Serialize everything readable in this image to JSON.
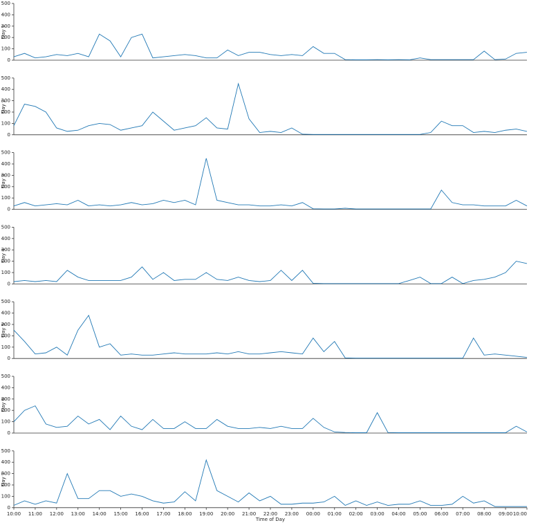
{
  "chart_data": [
    {
      "type": "line",
      "ylabel": "Day 1",
      "color": "#1f77b4",
      "xlim": [
        0,
        24
      ],
      "ylim": [
        0,
        500
      ],
      "yticks": [
        0,
        100,
        200,
        300,
        400,
        500
      ],
      "x": [
        0,
        0.5,
        1,
        1.5,
        2,
        2.5,
        3,
        3.5,
        4,
        4.5,
        5,
        5.5,
        6,
        6.5,
        7,
        7.5,
        8,
        8.5,
        9,
        9.5,
        10,
        10.5,
        11,
        11.5,
        12,
        12.5,
        13,
        13.5,
        14,
        14.5,
        15,
        15.5,
        16,
        16.5,
        17,
        17.5,
        18,
        18.5,
        19,
        19.5,
        20,
        20.5,
        21,
        21.5,
        22,
        22.5,
        23,
        23.5,
        24
      ],
      "values": [
        30,
        60,
        20,
        30,
        50,
        40,
        60,
        30,
        230,
        170,
        30,
        200,
        230,
        20,
        30,
        40,
        50,
        40,
        20,
        20,
        90,
        40,
        70,
        70,
        50,
        40,
        50,
        40,
        120,
        60,
        60,
        5,
        3,
        3,
        5,
        3,
        5,
        3,
        20,
        5,
        5,
        5,
        5,
        5,
        80,
        5,
        10,
        60,
        70
      ]
    },
    {
      "type": "line",
      "ylabel": "Day 2",
      "color": "#1f77b4",
      "xlim": [
        0,
        24
      ],
      "ylim": [
        0,
        500
      ],
      "yticks": [
        0,
        100,
        200,
        300,
        400,
        500
      ],
      "x": [
        0,
        0.5,
        1,
        1.5,
        2,
        2.5,
        3,
        3.5,
        4,
        4.5,
        5,
        5.5,
        6,
        6.5,
        7,
        7.5,
        8,
        8.5,
        9,
        9.5,
        10,
        10.5,
        11,
        11.5,
        12,
        12.5,
        13,
        13.5,
        14,
        14.5,
        15,
        15.5,
        16,
        16.5,
        17,
        17.5,
        18,
        18.5,
        19,
        19.5,
        20,
        20.5,
        21,
        21.5,
        22,
        22.5,
        23,
        23.5,
        24
      ],
      "values": [
        80,
        270,
        250,
        200,
        60,
        30,
        40,
        80,
        100,
        90,
        40,
        60,
        80,
        200,
        120,
        40,
        60,
        80,
        150,
        60,
        50,
        450,
        140,
        20,
        30,
        20,
        60,
        5,
        3,
        3,
        3,
        3,
        3,
        3,
        3,
        3,
        3,
        3,
        3,
        20,
        120,
        80,
        80,
        20,
        30,
        20,
        40,
        50,
        30
      ]
    },
    {
      "type": "line",
      "ylabel": "Day 3",
      "color": "#1f77b4",
      "xlim": [
        0,
        24
      ],
      "ylim": [
        0,
        500
      ],
      "yticks": [
        0,
        100,
        200,
        300,
        400,
        500
      ],
      "x": [
        0,
        0.5,
        1,
        1.5,
        2,
        2.5,
        3,
        3.5,
        4,
        4.5,
        5,
        5.5,
        6,
        6.5,
        7,
        7.5,
        8,
        8.5,
        9,
        9.5,
        10,
        10.5,
        11,
        11.5,
        12,
        12.5,
        13,
        13.5,
        14,
        14.5,
        15,
        15.5,
        16,
        16.5,
        17,
        17.5,
        18,
        18.5,
        19,
        19.5,
        20,
        20.5,
        21,
        21.5,
        22,
        22.5,
        23,
        23.5,
        24
      ],
      "values": [
        30,
        60,
        30,
        40,
        50,
        40,
        80,
        30,
        40,
        30,
        40,
        60,
        40,
        50,
        80,
        60,
        80,
        40,
        450,
        80,
        60,
        40,
        40,
        30,
        30,
        40,
        30,
        60,
        5,
        3,
        3,
        10,
        3,
        3,
        3,
        3,
        3,
        3,
        3,
        3,
        170,
        60,
        40,
        40,
        30,
        30,
        30,
        80,
        30
      ]
    },
    {
      "type": "line",
      "ylabel": "Day 4",
      "color": "#1f77b4",
      "xlim": [
        0,
        24
      ],
      "ylim": [
        0,
        500
      ],
      "yticks": [
        0,
        100,
        200,
        300,
        400,
        500
      ],
      "x": [
        0,
        0.5,
        1,
        1.5,
        2,
        2.5,
        3,
        3.5,
        4,
        4.5,
        5,
        5.5,
        6,
        6.5,
        7,
        7.5,
        8,
        8.5,
        9,
        9.5,
        10,
        10.5,
        11,
        11.5,
        12,
        12.5,
        13,
        13.5,
        14,
        14.5,
        15,
        15.5,
        16,
        16.5,
        17,
        17.5,
        18,
        18.5,
        19,
        19.5,
        20,
        20.5,
        21,
        21.5,
        22,
        22.5,
        23,
        23.5,
        24
      ],
      "values": [
        20,
        30,
        20,
        30,
        20,
        120,
        60,
        30,
        30,
        30,
        30,
        60,
        150,
        40,
        100,
        30,
        40,
        40,
        100,
        40,
        30,
        60,
        30,
        20,
        30,
        120,
        30,
        120,
        5,
        3,
        3,
        3,
        3,
        3,
        3,
        3,
        3,
        30,
        60,
        3,
        3,
        60,
        3,
        30,
        40,
        60,
        100,
        200,
        180
      ]
    },
    {
      "type": "line",
      "ylabel": "Day 5",
      "color": "#1f77b4",
      "xlim": [
        0,
        24
      ],
      "ylim": [
        0,
        500
      ],
      "yticks": [
        0,
        100,
        200,
        300,
        400,
        500
      ],
      "x": [
        0,
        0.5,
        1,
        1.5,
        2,
        2.5,
        3,
        3.5,
        4,
        4.5,
        5,
        5.5,
        6,
        6.5,
        7,
        7.5,
        8,
        8.5,
        9,
        9.5,
        10,
        10.5,
        11,
        11.5,
        12,
        12.5,
        13,
        13.5,
        14,
        14.5,
        15,
        15.5,
        16,
        16.5,
        17,
        17.5,
        18,
        18.5,
        19,
        19.5,
        20,
        20.5,
        21,
        21.5,
        22,
        22.5,
        23,
        23.5,
        24
      ],
      "values": [
        250,
        150,
        40,
        50,
        100,
        30,
        250,
        380,
        100,
        130,
        30,
        40,
        30,
        30,
        40,
        50,
        40,
        40,
        40,
        50,
        40,
        60,
        40,
        40,
        50,
        60,
        50,
        40,
        180,
        60,
        150,
        5,
        3,
        3,
        3,
        3,
        3,
        3,
        3,
        3,
        3,
        3,
        3,
        180,
        30,
        40,
        30,
        20,
        10
      ]
    },
    {
      "type": "line",
      "ylabel": "Day 6",
      "color": "#1f77b4",
      "xlim": [
        0,
        24
      ],
      "ylim": [
        0,
        500
      ],
      "yticks": [
        0,
        100,
        200,
        300,
        400,
        500
      ],
      "x": [
        0,
        0.5,
        1,
        1.5,
        2,
        2.5,
        3,
        3.5,
        4,
        4.5,
        5,
        5.5,
        6,
        6.5,
        7,
        7.5,
        8,
        8.5,
        9,
        9.5,
        10,
        10.5,
        11,
        11.5,
        12,
        12.5,
        13,
        13.5,
        14,
        14.5,
        15,
        15.5,
        16,
        16.5,
        17,
        17.5,
        18,
        18.5,
        19,
        19.5,
        20,
        20.5,
        21,
        21.5,
        22,
        22.5,
        23,
        23.5,
        24
      ],
      "values": [
        100,
        200,
        240,
        80,
        50,
        60,
        150,
        80,
        120,
        30,
        150,
        60,
        30,
        120,
        40,
        40,
        100,
        40,
        40,
        120,
        60,
        40,
        40,
        50,
        40,
        60,
        40,
        40,
        130,
        50,
        10,
        5,
        3,
        3,
        180,
        5,
        3,
        3,
        3,
        3,
        3,
        3,
        3,
        3,
        3,
        3,
        3,
        60,
        10
      ]
    },
    {
      "type": "line",
      "ylabel": "Day 7",
      "xlabel": "Time of Day",
      "color": "#1f77b4",
      "xlim": [
        0,
        24
      ],
      "ylim": [
        0,
        500
      ],
      "yticks": [
        0,
        100,
        200,
        300,
        400,
        500
      ],
      "xticks": [
        {
          "value": 0,
          "label": "10:00"
        },
        {
          "value": 1,
          "label": "11:00"
        },
        {
          "value": 2,
          "label": "12:00"
        },
        {
          "value": 3,
          "label": "13:00"
        },
        {
          "value": 4,
          "label": "14:00"
        },
        {
          "value": 5,
          "label": "15:00"
        },
        {
          "value": 6,
          "label": "16:00"
        },
        {
          "value": 7,
          "label": "17:00"
        },
        {
          "value": 8,
          "label": "18:00"
        },
        {
          "value": 9,
          "label": "19:00"
        },
        {
          "value": 10,
          "label": "20:00"
        },
        {
          "value": 11,
          "label": "21:00"
        },
        {
          "value": 12,
          "label": "22:00"
        },
        {
          "value": 13,
          "label": "23:00"
        },
        {
          "value": 14,
          "label": "00:00"
        },
        {
          "value": 15,
          "label": "01:00"
        },
        {
          "value": 16,
          "label": "02:00"
        },
        {
          "value": 17,
          "label": "03:00"
        },
        {
          "value": 18,
          "label": "04:00"
        },
        {
          "value": 19,
          "label": "05:00"
        },
        {
          "value": 20,
          "label": "06:00"
        },
        {
          "value": 21,
          "label": "07:00"
        },
        {
          "value": 22,
          "label": "08:00"
        },
        {
          "value": 23,
          "label": "09:00"
        },
        {
          "value": 24,
          "label": "10:00"
        }
      ],
      "x": [
        0,
        0.5,
        1,
        1.5,
        2,
        2.5,
        3,
        3.5,
        4,
        4.5,
        5,
        5.5,
        6,
        6.5,
        7,
        7.5,
        8,
        8.5,
        9,
        9.5,
        10,
        10.5,
        11,
        11.5,
        12,
        12.5,
        13,
        13.5,
        14,
        14.5,
        15,
        15.5,
        16,
        16.5,
        17,
        17.5,
        18,
        18.5,
        19,
        19.5,
        20,
        20.5,
        21,
        21.5,
        22,
        22.5,
        23,
        23.5,
        24
      ],
      "values": [
        20,
        60,
        30,
        60,
        40,
        300,
        80,
        80,
        150,
        150,
        100,
        120,
        100,
        60,
        40,
        50,
        140,
        60,
        420,
        150,
        100,
        50,
        130,
        60,
        100,
        30,
        30,
        40,
        40,
        50,
        100,
        20,
        60,
        20,
        50,
        20,
        30,
        30,
        60,
        20,
        20,
        30,
        100,
        40,
        60,
        10,
        10,
        10,
        10
      ]
    }
  ]
}
